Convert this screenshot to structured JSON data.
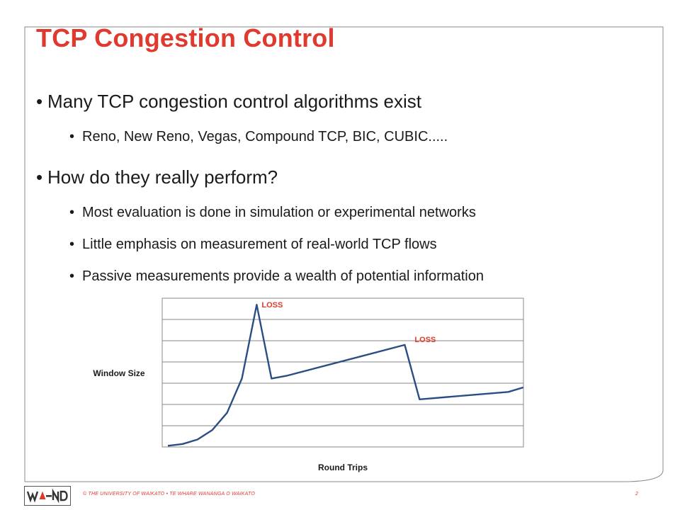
{
  "slide": {
    "title": "TCP Congestion Control",
    "bullets": [
      {
        "text": "Many TCP congestion control algorithms exist"
      },
      {
        "text": "Reno, New Reno, Vegas, Compound TCP, BIC, CUBIC....."
      },
      {
        "text": "How do they really perform?"
      },
      {
        "text": "Most evaluation is done in simulation or experimental networks"
      },
      {
        "text": "Little emphasis on measurement of real-world TCP flows"
      },
      {
        "text": "Passive measurements provide a wealth of potential information"
      }
    ],
    "bullet_glyph": "•"
  },
  "chart_data": {
    "type": "line",
    "title": "",
    "xlabel": "Round Trips",
    "ylabel": "Window Size",
    "x": [
      0,
      1,
      2,
      3,
      4,
      5,
      6,
      7,
      8,
      16,
      17,
      23,
      24
    ],
    "series": [
      {
        "values": [
          0.4,
          1.0,
          2.5,
          5.7,
          11.5,
          23.0,
          47.8,
          23.0,
          23.9,
          34.3,
          16.0,
          18.5,
          20.0
        ]
      }
    ],
    "ylim": [
      0,
      50
    ],
    "xlim": [
      0,
      24.4
    ],
    "grid": true,
    "annotations": [
      {
        "text": "LOSS",
        "x": 6
      },
      {
        "text": "LOSS",
        "x": 16
      }
    ],
    "line_color": "#2a4e83",
    "annotation_color": "#e03a2f"
  },
  "footer": {
    "text": "© THE UNIVERSITY OF WAIKATO  •  TE WHARE WANANGA O WAIKATO",
    "page": "2",
    "logo": "WAND"
  },
  "colors": {
    "accent": "#e03a2f",
    "text": "#1a1a1a",
    "border": "#888888"
  }
}
